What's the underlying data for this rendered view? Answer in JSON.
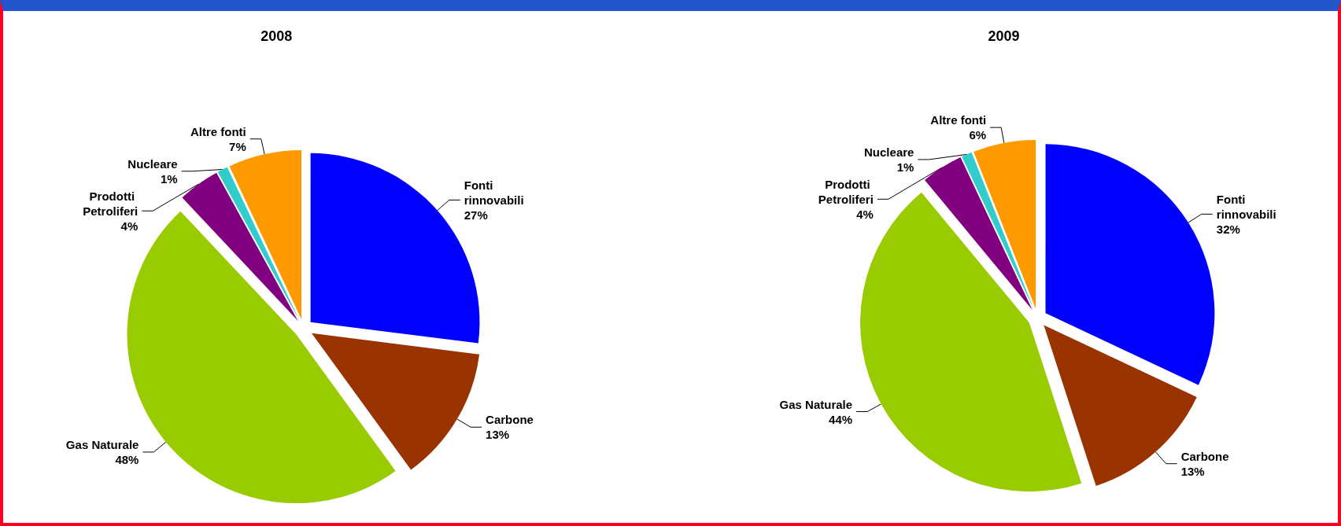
{
  "chart_data": [
    {
      "type": "pie",
      "title": "2008",
      "categories": [
        "Fonti rinnovabili",
        "Carbone",
        "Gas Naturale",
        "Prodotti Petroliferi",
        "Nucleare",
        "Altre fonti"
      ],
      "values": [
        27,
        13,
        48,
        4,
        1,
        7
      ],
      "value_labels": [
        "27%",
        "13%",
        "48%",
        "4%",
        "1%",
        "7%"
      ],
      "colors": [
        "#0000ff",
        "#993300",
        "#99cc00",
        "#800080",
        "#33cccc",
        "#ff9900"
      ]
    },
    {
      "type": "pie",
      "title": "2009",
      "categories": [
        "Fonti rinnovabili",
        "Carbone",
        "Gas Naturale",
        "Prodotti Petroliferi",
        "Nucleare",
        "Altre fonti"
      ],
      "values": [
        32,
        13,
        44,
        4,
        1,
        6
      ],
      "value_labels": [
        "32%",
        "13%",
        "44%",
        "4%",
        "1%",
        "6%"
      ],
      "colors": [
        "#0000ff",
        "#993300",
        "#99cc00",
        "#800080",
        "#33cccc",
        "#ff9900"
      ]
    }
  ]
}
